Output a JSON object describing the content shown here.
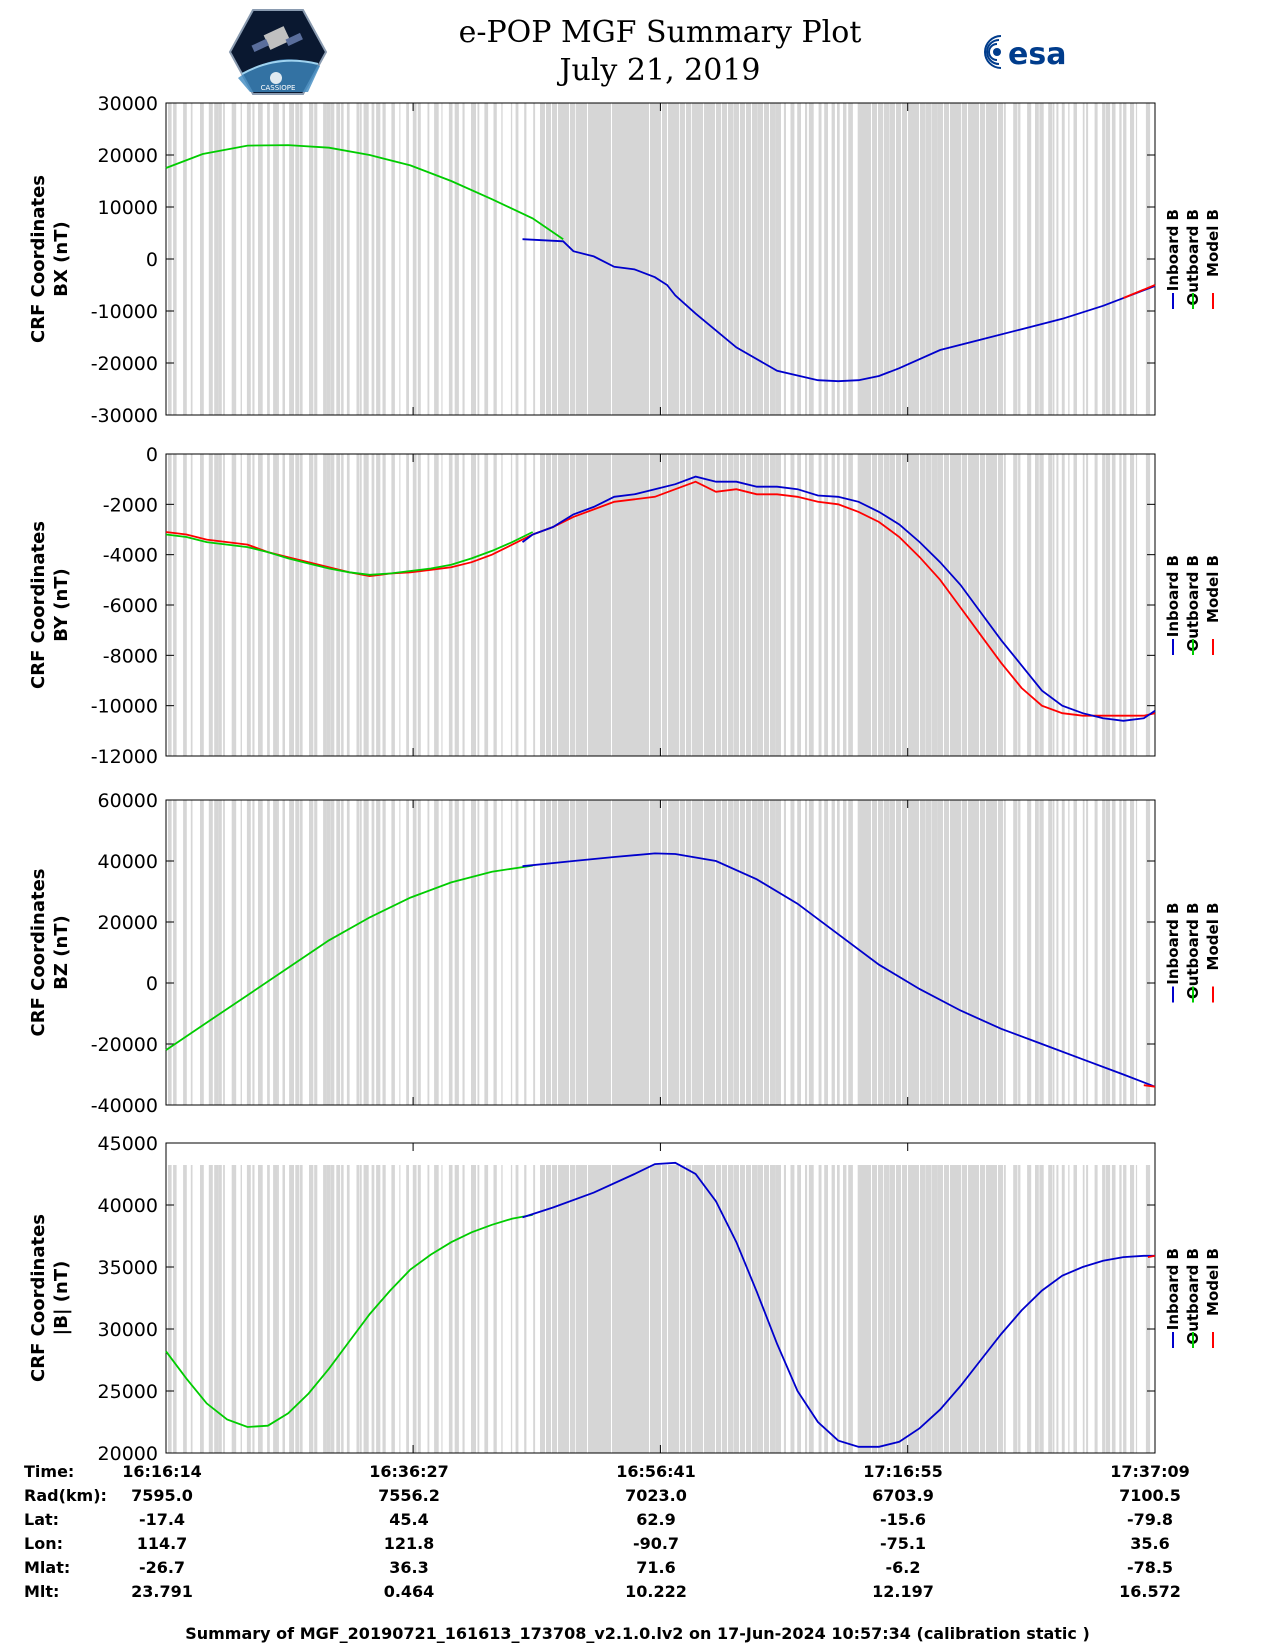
{
  "title": {
    "line1": "e-POP MGF Summary Plot",
    "line2": "July 21, 2019"
  },
  "logos": {
    "left_caption": "CASSIOPE",
    "right_text": "esa"
  },
  "colors": {
    "inboard": "#0000cc",
    "outboard": "#00cc00",
    "model": "#ff0000",
    "gap_shade": "#d6d6d6",
    "esa_blue": "#003c8c"
  },
  "legend": {
    "labels": [
      "Inboard B",
      "Outboard B",
      "Model B"
    ]
  },
  "chart_data": [
    {
      "type": "line",
      "ylabel": [
        "CRF Coordinates",
        "BX (nT)"
      ],
      "ylim": [
        -30000,
        30000
      ],
      "yticks": [
        30000,
        20000,
        10000,
        0,
        -10000,
        -20000,
        -30000
      ],
      "xlim": [
        0,
        4855
      ],
      "xtick_values": [
        0,
        1213,
        2427,
        3641,
        4855
      ],
      "series": [
        {
          "name": "Outboard B",
          "color": "outboard",
          "x": [
            0,
            180,
            400,
            600,
            800,
            1000,
            1200,
            1400,
            1600,
            1800,
            1950
          ],
          "y": [
            17500,
            20200,
            21800,
            21900,
            21400,
            20000,
            18000,
            15000,
            11500,
            7800,
            3800
          ]
        },
        {
          "name": "Inboard B",
          "color": "inboard",
          "x": [
            1750,
            1950,
            2000,
            2100,
            2200,
            2300,
            2400,
            2460,
            2500,
            2600,
            2800,
            3000,
            3200,
            3300,
            3400,
            3500,
            3600,
            3800,
            4000,
            4200,
            4400,
            4600,
            4855
          ],
          "y": [
            3800,
            3400,
            1500,
            500,
            -1500,
            -2000,
            -3500,
            -5000,
            -7000,
            -10500,
            -17000,
            -21500,
            -23300,
            -23500,
            -23300,
            -22500,
            -21000,
            -17500,
            -15500,
            -13500,
            -11500,
            -9000,
            -5200
          ]
        },
        {
          "name": "Model B",
          "color": "model",
          "x": [
            4700,
            4855
          ],
          "y": [
            -7500,
            -5000
          ]
        }
      ]
    },
    {
      "type": "line",
      "ylabel": [
        "CRF Coordinates",
        "BY (nT)"
      ],
      "ylim": [
        -12000,
        0
      ],
      "yticks": [
        0,
        -2000,
        -4000,
        -6000,
        -8000,
        -10000,
        -12000
      ],
      "xlim": [
        0,
        4855
      ],
      "xtick_values": [
        0,
        1213,
        2427,
        3641,
        4855
      ],
      "series": [
        {
          "name": "Model B",
          "color": "model",
          "x": [
            0,
            100,
            200,
            300,
            400,
            500,
            600,
            700,
            800,
            900,
            1000,
            1100,
            1200,
            1300,
            1400,
            1500,
            1600,
            1700,
            1800,
            1900,
            2000,
            2100,
            2200,
            2300,
            2400,
            2500,
            2600,
            2700,
            2800,
            2900,
            3000,
            3100,
            3200,
            3300,
            3400,
            3500,
            3600,
            3700,
            3800,
            3900,
            4000,
            4100,
            4200,
            4300,
            4400,
            4500,
            4600,
            4700,
            4800,
            4855
          ],
          "y": [
            -3100,
            -3200,
            -3400,
            -3500,
            -3600,
            -3900,
            -4100,
            -4300,
            -4500,
            -4700,
            -4850,
            -4750,
            -4700,
            -4600,
            -4500,
            -4300,
            -4000,
            -3600,
            -3200,
            -2900,
            -2500,
            -2200,
            -1900,
            -1800,
            -1700,
            -1400,
            -1100,
            -1500,
            -1400,
            -1600,
            -1600,
            -1700,
            -1900,
            -2000,
            -2300,
            -2700,
            -3300,
            -4100,
            -5000,
            -6100,
            -7200,
            -8300,
            -9300,
            -10000,
            -10300,
            -10400,
            -10400,
            -10400,
            -10400,
            -10300
          ]
        },
        {
          "name": "Outboard B",
          "color": "outboard",
          "x": [
            0,
            100,
            200,
            300,
            400,
            500,
            600,
            700,
            800,
            900,
            1000,
            1100,
            1200,
            1300,
            1400,
            1500,
            1600,
            1700,
            1800
          ],
          "y": [
            -3200,
            -3300,
            -3500,
            -3600,
            -3700,
            -3900,
            -4150,
            -4350,
            -4550,
            -4700,
            -4800,
            -4750,
            -4650,
            -4550,
            -4400,
            -4150,
            -3850,
            -3500,
            -3100
          ]
        },
        {
          "name": "Inboard B",
          "color": "inboard",
          "x": [
            1750,
            1800,
            1900,
            2000,
            2100,
            2200,
            2300,
            2400,
            2500,
            2600,
            2700,
            2800,
            2900,
            3000,
            3100,
            3200,
            3300,
            3400,
            3500,
            3600,
            3700,
            3800,
            3900,
            4000,
            4100,
            4200,
            4300,
            4400,
            4500,
            4600,
            4700,
            4800,
            4855
          ],
          "y": [
            -3500,
            -3200,
            -2900,
            -2400,
            -2100,
            -1700,
            -1600,
            -1400,
            -1200,
            -900,
            -1100,
            -1100,
            -1300,
            -1300,
            -1400,
            -1650,
            -1700,
            -1900,
            -2300,
            -2800,
            -3500,
            -4300,
            -5200,
            -6300,
            -7400,
            -8400,
            -9400,
            -10000,
            -10300,
            -10500,
            -10600,
            -10500,
            -10200
          ]
        }
      ]
    },
    {
      "type": "line",
      "ylabel": [
        "CRF Coordinates",
        "BZ (nT)"
      ],
      "ylim": [
        -40000,
        60000
      ],
      "yticks": [
        60000,
        40000,
        20000,
        0,
        -20000,
        -40000
      ],
      "xlim": [
        0,
        4855
      ],
      "xtick_values": [
        0,
        1213,
        2427,
        3641,
        4855
      ],
      "series": [
        {
          "name": "Outboard B",
          "color": "outboard",
          "x": [
            0,
            200,
            400,
            600,
            800,
            1000,
            1200,
            1400,
            1600,
            1800
          ],
          "y": [
            -22000,
            -13000,
            -4000,
            5000,
            14000,
            21500,
            28000,
            33000,
            36500,
            38500
          ]
        },
        {
          "name": "Inboard B",
          "color": "inboard",
          "x": [
            1750,
            2000,
            2200,
            2400,
            2500,
            2700,
            2900,
            3100,
            3300,
            3500,
            3700,
            3900,
            4100,
            4300,
            4500,
            4700,
            4855
          ],
          "y": [
            38300,
            40000,
            41300,
            42500,
            42300,
            40000,
            34000,
            26000,
            16000,
            6000,
            -2000,
            -9000,
            -15000,
            -20000,
            -25000,
            -30000,
            -34000
          ]
        },
        {
          "name": "Model B",
          "color": "model",
          "x": [
            4800,
            4855
          ],
          "y": [
            -33500,
            -34000
          ]
        }
      ]
    },
    {
      "type": "line",
      "ylabel": [
        "CRF Coordinates",
        "|B| (nT)"
      ],
      "ylim": [
        20000,
        45000
      ],
      "yticks": [
        45000,
        40000,
        35000,
        30000,
        25000,
        20000
      ],
      "xlim": [
        0,
        4855
      ],
      "xtick_values": [
        0,
        1213,
        2427,
        3641,
        4855
      ],
      "series": [
        {
          "name": "Outboard B",
          "color": "outboard",
          "x": [
            0,
            100,
            200,
            300,
            400,
            500,
            600,
            700,
            800,
            900,
            1000,
            1100,
            1200,
            1300,
            1400,
            1500,
            1600,
            1700,
            1800
          ],
          "y": [
            28200,
            26000,
            24000,
            22700,
            22100,
            22200,
            23200,
            24800,
            26800,
            29000,
            31200,
            33100,
            34800,
            36000,
            37000,
            37800,
            38400,
            38900,
            39200
          ]
        },
        {
          "name": "Inboard B",
          "color": "inboard",
          "x": [
            1750,
            1900,
            2100,
            2300,
            2400,
            2500,
            2600,
            2700,
            2800,
            2900,
            3000,
            3100,
            3200,
            3300,
            3400,
            3500,
            3600,
            3700,
            3800,
            3900,
            4000,
            4100,
            4200,
            4300,
            4400,
            4500,
            4600,
            4700,
            4800,
            4855
          ],
          "y": [
            39000,
            39800,
            41000,
            42500,
            43300,
            43400,
            42500,
            40300,
            37000,
            33000,
            28800,
            25000,
            22500,
            21000,
            20500,
            20500,
            20900,
            22000,
            23500,
            25400,
            27500,
            29600,
            31500,
            33100,
            34300,
            35000,
            35500,
            35800,
            35900,
            35900
          ]
        },
        {
          "name": "Model B",
          "color": "model",
          "x": [
            4820,
            4855
          ],
          "y": [
            35800,
            35900
          ]
        }
      ]
    }
  ],
  "ephemeris": {
    "labels": [
      "Time:",
      "Rad(km):",
      "Lat:",
      "Lon:",
      "Mlat:",
      "Mlt:"
    ],
    "columns": [
      {
        "time": "16:16:14",
        "rad": "7595.0",
        "lat": "-17.4",
        "lon": "114.7",
        "mlat": "-26.7",
        "mlt": "23.791"
      },
      {
        "time": "16:36:27",
        "rad": "7556.2",
        "lat": "45.4",
        "lon": "121.8",
        "mlat": "36.3",
        "mlt": "0.464"
      },
      {
        "time": "16:56:41",
        "rad": "7023.0",
        "lat": "62.9",
        "lon": "-90.7",
        "mlat": "71.6",
        "mlt": "10.222"
      },
      {
        "time": "17:16:55",
        "rad": "6703.9",
        "lat": "-15.6",
        "lon": "-75.1",
        "mlat": "-6.2",
        "mlt": "12.197"
      },
      {
        "time": "17:37:09",
        "rad": "7100.5",
        "lat": "-79.8",
        "lon": "35.6",
        "mlat": "-78.5",
        "mlt": "16.572"
      }
    ]
  },
  "footer": "Summary of MGF_20190721_161613_173708_v2.1.0.lv2 on 17-Jun-2024 10:57:34 (calibration static )"
}
